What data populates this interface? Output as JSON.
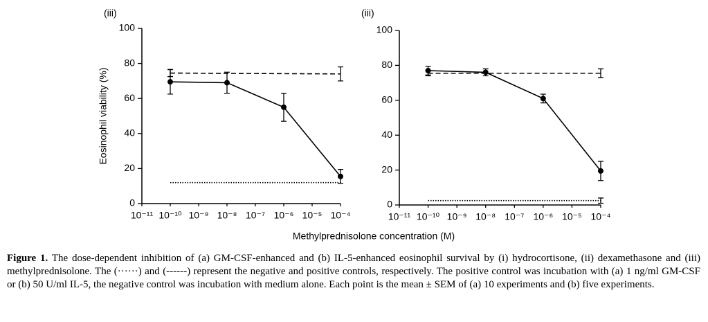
{
  "chart_data": [
    {
      "type": "line",
      "panel_label": "(iii)",
      "ylabel": "Eosinophil viability (%)",
      "log_x": true,
      "xlim": [
        1e-11,
        0.0001
      ],
      "ylim": [
        0,
        100
      ],
      "xticks": [
        {
          "value": 1e-11,
          "label": "10⁻¹¹"
        },
        {
          "value": 1e-10,
          "label": "10⁻¹⁰"
        },
        {
          "value": 1e-09,
          "label": "10⁻⁹"
        },
        {
          "value": 1e-08,
          "label": "10⁻⁸"
        },
        {
          "value": 1e-07,
          "label": "10⁻⁷"
        },
        {
          "value": 1e-06,
          "label": "10⁻⁶"
        },
        {
          "value": 1e-05,
          "label": "10⁻⁵"
        },
        {
          "value": 0.0001,
          "label": "10⁻⁴"
        }
      ],
      "yticks": [
        0,
        20,
        40,
        60,
        80,
        100
      ],
      "series": [
        {
          "color": "#000000",
          "style": "solid",
          "markers": true,
          "x": [
            1e-10,
            1e-08,
            1e-06,
            0.0001
          ],
          "values": [
            69.5,
            69,
            55,
            15.5
          ],
          "errors": [
            7,
            6,
            8,
            4
          ]
        },
        {
          "color": "#000000",
          "style": "dashed",
          "markers": false,
          "x": [
            1e-10,
            0.0001
          ],
          "values": [
            74.5,
            74
          ],
          "errors": [
            2,
            4
          ]
        },
        {
          "color": "#000000",
          "style": "dotted",
          "markers": false,
          "x": [
            1e-10,
            0.0001
          ],
          "values": [
            12,
            12
          ],
          "errors": [
            0,
            0
          ]
        }
      ]
    },
    {
      "type": "line",
      "panel_label": "(iii)",
      "log_x": true,
      "xlim": [
        1e-11,
        0.0001
      ],
      "ylim": [
        0,
        100
      ],
      "xticks": [
        {
          "value": 1e-11,
          "label": "10⁻¹¹"
        },
        {
          "value": 1e-10,
          "label": "10⁻¹⁰"
        },
        {
          "value": 1e-09,
          "label": "10⁻⁹"
        },
        {
          "value": 1e-08,
          "label": "10⁻⁸"
        },
        {
          "value": 1e-07,
          "label": "10⁻⁷"
        },
        {
          "value": 1e-06,
          "label": "10⁻⁶"
        },
        {
          "value": 1e-05,
          "label": "10⁻⁵"
        },
        {
          "value": 0.0001,
          "label": "10⁻⁴"
        }
      ],
      "yticks": [
        0,
        20,
        40,
        60,
        80,
        100
      ],
      "series": [
        {
          "color": "#000000",
          "style": "solid",
          "markers": true,
          "x": [
            1e-10,
            1e-08,
            1e-06,
            0.0001
          ],
          "values": [
            77,
            76,
            61,
            19.5
          ],
          "errors": [
            2.5,
            2,
            2.5,
            5.5
          ]
        },
        {
          "color": "#000000",
          "style": "dashed",
          "markers": false,
          "x": [
            1e-10,
            0.0001
          ],
          "values": [
            75.5,
            75.5
          ],
          "errors": [
            1.5,
            2.5
          ]
        },
        {
          "color": "#000000",
          "style": "dotted",
          "markers": false,
          "x": [
            1e-10,
            0.0001
          ],
          "values": [
            2.5,
            2.5
          ],
          "errors": [
            0,
            1.5
          ]
        }
      ]
    }
  ],
  "xlabel": "Methylprednisolone concentration (M)",
  "caption": {
    "label": "Figure 1.",
    "text": "The dose-dependent inhibition of (a) GM-CSF-enhanced and (b) IL-5-enhanced eosinophil survival by (i) hydrocortisone, (ii) dexamethasone and (iii) methylprednisolone. The (······) and (------) represent the negative and positive controls, respectively. The positive control was incubation with (a) 1 ng/ml GM-CSF or (b) 50 U/ml IL-5, the negative control was incubation with medium alone. Each point is the mean ± SEM of (a) 10 experiments and (b) five experiments."
  }
}
